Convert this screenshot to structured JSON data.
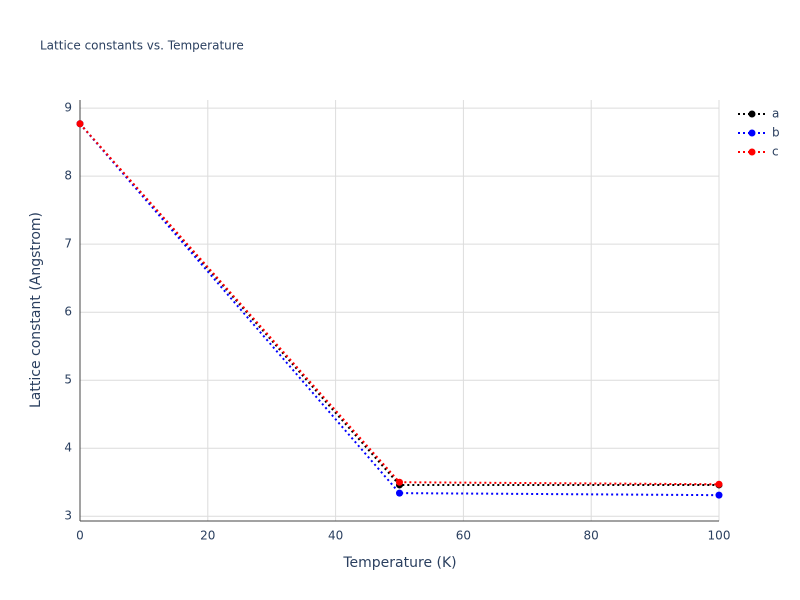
{
  "chart_data": {
    "type": "line",
    "title": "Lattice constants vs. Temperature",
    "x_label": "Temperature (K)",
    "y_label": "Lattice constant (Angstrom)",
    "x": [
      0,
      50,
      100
    ],
    "series": [
      {
        "name": "a",
        "color": "#000000",
        "values": [
          8.77,
          3.46,
          3.46
        ]
      },
      {
        "name": "b",
        "color": "#0000ff",
        "values": [
          8.77,
          3.34,
          3.31
        ]
      },
      {
        "name": "c",
        "color": "#ff0000",
        "values": [
          8.77,
          3.5,
          3.47
        ]
      }
    ],
    "xlim": [
      0,
      100
    ],
    "xticks": [
      0,
      20,
      40,
      60,
      80,
      100
    ],
    "ylim": [
      2.93,
      9.12
    ],
    "yticks": [
      3,
      4,
      5,
      6,
      7,
      8,
      9
    ],
    "grid": true,
    "legend": "top-right"
  }
}
